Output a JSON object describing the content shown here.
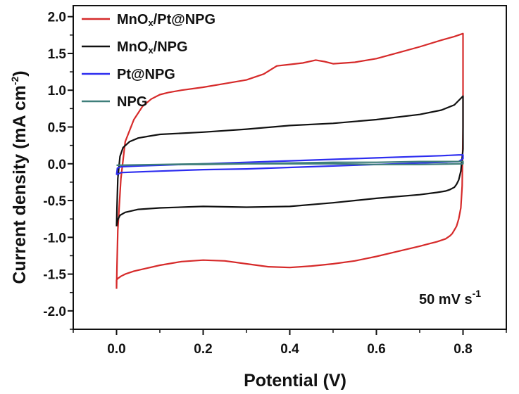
{
  "chart_data": {
    "type": "line",
    "title": "",
    "xlabel": "Potential (V)",
    "ylabel": {
      "main": "Current density (mA cm",
      "sup": "-2",
      "close": ")"
    },
    "xlim": [
      -0.1,
      0.9
    ],
    "ylim": [
      -2.25,
      2.15
    ],
    "xticks": [
      0.0,
      0.2,
      0.4,
      0.6,
      0.8
    ],
    "xtick_labels": [
      "0.0",
      "0.2",
      "0.4",
      "0.6",
      "0.8"
    ],
    "yticks": [
      -2.0,
      -1.5,
      -1.0,
      -0.5,
      0.0,
      0.5,
      1.0,
      1.5,
      2.0
    ],
    "ytick_labels": [
      "-2.0",
      "-1.5",
      "-1.0",
      "-0.5",
      "0.0",
      "0.5",
      "1.0",
      "1.5",
      "2.0"
    ],
    "grid": false,
    "legend_position": "top-left",
    "annotation": {
      "main": "50 mV s",
      "sup": "-1"
    },
    "series": [
      {
        "name": "MnOx/Pt@NPG",
        "legend": {
          "pre": "MnO",
          "sub": "x",
          "post": "/Pt@NPG"
        },
        "color": "#d62a2a",
        "x": [
          0.0,
          0.001,
          0.003,
          0.01,
          0.02,
          0.04,
          0.06,
          0.08,
          0.1,
          0.12,
          0.15,
          0.2,
          0.25,
          0.3,
          0.34,
          0.37,
          0.4,
          0.43,
          0.46,
          0.48,
          0.5,
          0.55,
          0.6,
          0.65,
          0.7,
          0.75,
          0.78,
          0.8,
          0.8,
          0.798,
          0.795,
          0.79,
          0.785,
          0.78,
          0.775,
          0.77,
          0.76,
          0.74,
          0.72,
          0.7,
          0.65,
          0.6,
          0.55,
          0.5,
          0.45,
          0.4,
          0.35,
          0.3,
          0.25,
          0.2,
          0.15,
          0.1,
          0.07,
          0.04,
          0.02,
          0.01,
          0.003,
          0.0,
          0.0
        ],
        "y": [
          -1.7,
          -1.4,
          -0.9,
          -0.2,
          0.3,
          0.6,
          0.78,
          0.88,
          0.94,
          0.97,
          1.0,
          1.04,
          1.09,
          1.14,
          1.22,
          1.33,
          1.35,
          1.37,
          1.41,
          1.39,
          1.36,
          1.38,
          1.43,
          1.51,
          1.59,
          1.68,
          1.73,
          1.77,
          0.5,
          -0.3,
          -0.6,
          -0.75,
          -0.85,
          -0.9,
          -0.95,
          -0.98,
          -1.02,
          -1.06,
          -1.09,
          -1.12,
          -1.19,
          -1.26,
          -1.32,
          -1.36,
          -1.39,
          -1.41,
          -1.4,
          -1.36,
          -1.32,
          -1.31,
          -1.33,
          -1.38,
          -1.42,
          -1.46,
          -1.5,
          -1.53,
          -1.56,
          -1.58,
          -1.7
        ]
      },
      {
        "name": "MnOx/NPG",
        "legend": {
          "pre": "MnO",
          "sub": "x",
          "post": "/NPG"
        },
        "color": "#111111",
        "x": [
          0.0,
          0.001,
          0.003,
          0.008,
          0.015,
          0.03,
          0.05,
          0.08,
          0.1,
          0.2,
          0.3,
          0.4,
          0.5,
          0.6,
          0.7,
          0.75,
          0.78,
          0.8,
          0.8,
          0.795,
          0.79,
          0.785,
          0.78,
          0.77,
          0.76,
          0.74,
          0.7,
          0.6,
          0.5,
          0.4,
          0.3,
          0.2,
          0.1,
          0.05,
          0.02,
          0.008,
          0.003,
          0.0
        ],
        "y": [
          -0.85,
          -0.6,
          -0.2,
          0.1,
          0.22,
          0.3,
          0.35,
          0.38,
          0.4,
          0.43,
          0.47,
          0.52,
          0.55,
          0.6,
          0.67,
          0.73,
          0.8,
          0.92,
          0.2,
          -0.1,
          -0.22,
          -0.28,
          -0.32,
          -0.35,
          -0.37,
          -0.39,
          -0.42,
          -0.47,
          -0.53,
          -0.58,
          -0.59,
          -0.58,
          -0.6,
          -0.62,
          -0.66,
          -0.7,
          -0.76,
          -0.85
        ]
      },
      {
        "name": "Pt@NPG",
        "legend": {
          "pre": "Pt@NPG",
          "sub": "",
          "post": ""
        },
        "color": "#2d2df0",
        "x": [
          0.0,
          0.002,
          0.01,
          0.05,
          0.1,
          0.2,
          0.3,
          0.4,
          0.5,
          0.6,
          0.7,
          0.75,
          0.79,
          0.8,
          0.8,
          0.79,
          0.75,
          0.7,
          0.6,
          0.5,
          0.4,
          0.3,
          0.2,
          0.1,
          0.05,
          0.01,
          0.0
        ],
        "y": [
          -0.15,
          -0.06,
          -0.04,
          -0.03,
          -0.02,
          0.0,
          0.02,
          0.04,
          0.06,
          0.08,
          0.1,
          0.11,
          0.12,
          0.12,
          0.07,
          0.03,
          0.02,
          0.01,
          -0.01,
          -0.03,
          -0.05,
          -0.07,
          -0.08,
          -0.1,
          -0.11,
          -0.12,
          -0.15
        ]
      },
      {
        "name": "NPG",
        "legend": {
          "pre": "NPG",
          "sub": "",
          "post": ""
        },
        "color": "#3f7f7a",
        "x": [
          0.0,
          0.1,
          0.2,
          0.3,
          0.4,
          0.5,
          0.6,
          0.7,
          0.8,
          0.8,
          0.7,
          0.6,
          0.5,
          0.4,
          0.3,
          0.2,
          0.1,
          0.0,
          0.0
        ],
        "y": [
          -0.02,
          -0.01,
          0.0,
          0.0,
          0.01,
          0.02,
          0.02,
          0.03,
          0.03,
          0.0,
          -0.01,
          -0.01,
          0.0,
          0.0,
          0.0,
          -0.01,
          -0.01,
          -0.02,
          -0.02
        ]
      }
    ]
  }
}
